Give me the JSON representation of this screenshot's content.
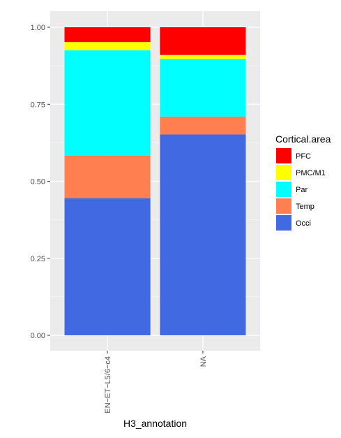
{
  "chart_data": {
    "type": "bar",
    "stacked": true,
    "orientation": "vertical",
    "categories": [
      "EN−ET−L5/6−c4",
      "NA"
    ],
    "series": [
      {
        "name": "Occi",
        "color": "#4169E1",
        "values": [
          0.445,
          0.652
        ]
      },
      {
        "name": "Temp",
        "color": "#FF7F50",
        "values": [
          0.138,
          0.058
        ]
      },
      {
        "name": "Par",
        "color": "#00FFFF",
        "values": [
          0.342,
          0.187
        ]
      },
      {
        "name": "PMC/M1",
        "color": "#FFFF00",
        "values": [
          0.027,
          0.013
        ]
      },
      {
        "name": "PFC",
        "color": "#FF0000",
        "values": [
          0.048,
          0.09
        ]
      }
    ],
    "xlabel": "H3_annotation",
    "ylabel": "",
    "ylim": [
      0,
      1
    ],
    "yticks": [
      0,
      0.25,
      0.5,
      0.75,
      1
    ],
    "ytick_labels": [
      "0.00",
      "0.25",
      "0.50",
      "0.75",
      "1.00"
    ],
    "legend": {
      "title": "Cortical.area",
      "position": "right",
      "order": [
        "PFC",
        "PMC/M1",
        "Par",
        "Temp",
        "Occi"
      ]
    },
    "panel_background": "#EBEBEB",
    "grid": true,
    "x_tick_rotation": 90
  }
}
